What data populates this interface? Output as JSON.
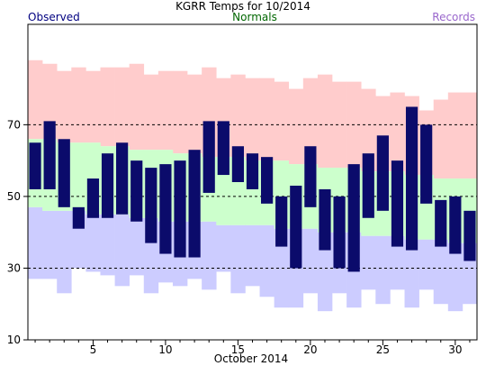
{
  "chart_data": {
    "type": "bar",
    "title": "KGRR Temps for 10/2014",
    "xlabel": "October 2014",
    "ylabel": "",
    "legend": {
      "observed": "Observed",
      "normals": "Normals",
      "records": "Records"
    },
    "colors": {
      "observed": "#0b0b6b",
      "normals": "#ccffcc",
      "records_high": "#ffcccc",
      "records_low": "#ccccff",
      "observed_label": "#000080",
      "normals_label": "#006600",
      "records_label": "#9966cc"
    },
    "x_range": [
      1,
      31
    ],
    "ylim": [
      10,
      98
    ],
    "y_ticks": [
      10,
      30,
      50,
      70
    ],
    "y_dashed_gridlines": [
      30,
      50,
      70
    ],
    "x_tick_labels": [
      5,
      10,
      15,
      20,
      25,
      30
    ],
    "days": [
      1,
      2,
      3,
      4,
      5,
      6,
      7,
      8,
      9,
      10,
      11,
      12,
      13,
      14,
      15,
      16,
      17,
      18,
      19,
      20,
      21,
      22,
      23,
      24,
      25,
      26,
      27,
      28,
      29,
      30,
      31
    ],
    "record_high": [
      88,
      87,
      85,
      86,
      85,
      86,
      86,
      87,
      84,
      85,
      85,
      84,
      86,
      83,
      84,
      83,
      83,
      82,
      80,
      83,
      84,
      82,
      82,
      80,
      78,
      79,
      78,
      74,
      77,
      79,
      79
    ],
    "normal_high": [
      66,
      66,
      65,
      65,
      65,
      64,
      64,
      63,
      63,
      63,
      62,
      62,
      61,
      61,
      61,
      60,
      60,
      60,
      59,
      59,
      58,
      58,
      58,
      57,
      57,
      57,
      56,
      56,
      55,
      55,
      55
    ],
    "normal_low": [
      47,
      46,
      46,
      46,
      45,
      45,
      45,
      44,
      44,
      43,
      43,
      43,
      43,
      42,
      42,
      42,
      42,
      41,
      41,
      41,
      40,
      40,
      40,
      39,
      39,
      39,
      38,
      38,
      38,
      37,
      37
    ],
    "record_low": [
      27,
      27,
      23,
      30,
      29,
      28,
      25,
      28,
      23,
      26,
      25,
      27,
      24,
      29,
      23,
      25,
      22,
      19,
      19,
      23,
      18,
      23,
      19,
      24,
      20,
      24,
      19,
      24,
      20,
      18,
      20
    ],
    "observed_high": [
      65,
      71,
      66,
      47,
      55,
      62,
      65,
      60,
      58,
      59,
      60,
      63,
      71,
      71,
      64,
      62,
      61,
      50,
      53,
      64,
      52,
      50,
      59,
      62,
      67,
      60,
      75,
      70,
      49,
      50,
      46
    ],
    "observed_low": [
      52,
      52,
      47,
      41,
      44,
      44,
      45,
      43,
      37,
      34,
      33,
      33,
      51,
      56,
      54,
      52,
      48,
      36,
      30,
      47,
      35,
      30,
      29,
      44,
      46,
      36,
      35,
      48,
      36,
      34,
      32
    ]
  }
}
